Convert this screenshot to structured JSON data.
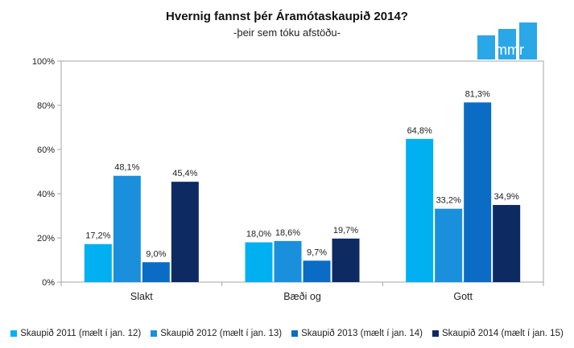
{
  "chart_data": {
    "type": "bar",
    "title": "Hvernig fannst þér Áramótaskaupið 2014?",
    "subtitle": "-þeir sem tóku afstöðu-",
    "categories": [
      "Slakt",
      "Bæði og",
      "Gott"
    ],
    "series": [
      {
        "name": "Skaupið 2011 (mælt í jan. 12)",
        "color": "#00b0f0",
        "values": [
          17.2,
          18.0,
          64.8
        ],
        "labels": [
          "17,2%",
          "18,0%",
          "64,8%"
        ]
      },
      {
        "name": "Skaupið 2012 (mælt í jan. 13)",
        "color": "#1a8fdc",
        "values": [
          48.1,
          18.6,
          33.2
        ],
        "labels": [
          "48,1%",
          "18,6%",
          "33,2%"
        ]
      },
      {
        "name": "Skaupið 2013 (mælt í jan. 14)",
        "color": "#0a6cc4",
        "values": [
          9.0,
          9.7,
          81.3
        ],
        "labels": [
          "9,0%",
          "9,7%",
          "81,3%"
        ]
      },
      {
        "name": "Skaupið 2014 (mælt í jan. 15)",
        "color": "#0e2a62",
        "values": [
          45.4,
          19.7,
          34.9
        ],
        "labels": [
          "45,4%",
          "19,7%",
          "34,9%"
        ]
      }
    ],
    "ylim": [
      0,
      100
    ],
    "yticks": [
      0,
      20,
      40,
      60,
      80,
      100
    ],
    "ytick_labels": [
      "0%",
      "20%",
      "40%",
      "60%",
      "80%",
      "100%"
    ],
    "legend": "bottom",
    "grid": false
  },
  "logo": {
    "text": "mmr",
    "color": "#2aa7e6"
  }
}
